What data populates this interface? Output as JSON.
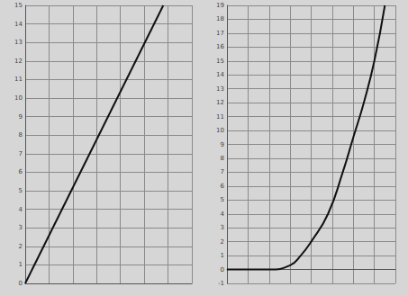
{
  "chart_data": [
    {
      "type": "line",
      "color": "#111111",
      "grid": true,
      "tick_labels": "y",
      "x": [
        0,
        5.8
      ],
      "values": [
        0,
        15
      ],
      "xlim": [
        0,
        7
      ],
      "xticks": [
        0,
        1,
        2,
        3,
        4,
        5,
        6,
        7
      ],
      "ylim": [
        0,
        15
      ],
      "yticks": [
        0,
        1,
        2,
        3,
        4,
        5,
        6,
        7,
        8,
        9,
        10,
        11,
        12,
        13,
        14,
        15
      ]
    },
    {
      "type": "line",
      "color": "#111111",
      "grid": true,
      "tick_labels": "y",
      "x": [
        -2,
        -1,
        0,
        1,
        1.5,
        2,
        2.8,
        3.5,
        4,
        4.5,
        5,
        5.5
      ],
      "values": [
        0,
        0,
        0,
        0.3,
        1,
        2,
        4,
        7,
        9.5,
        12,
        15,
        19
      ],
      "xlim": [
        -2,
        6
      ],
      "xticks": [
        -2,
        -1,
        0,
        1,
        2,
        3,
        4,
        5,
        6
      ],
      "ylim": [
        -1,
        19
      ],
      "yticks": [
        -1,
        0,
        1,
        2,
        3,
        4,
        5,
        6,
        7,
        8,
        9,
        10,
        11,
        12,
        13,
        14,
        15,
        16,
        17,
        18,
        19
      ]
    }
  ]
}
